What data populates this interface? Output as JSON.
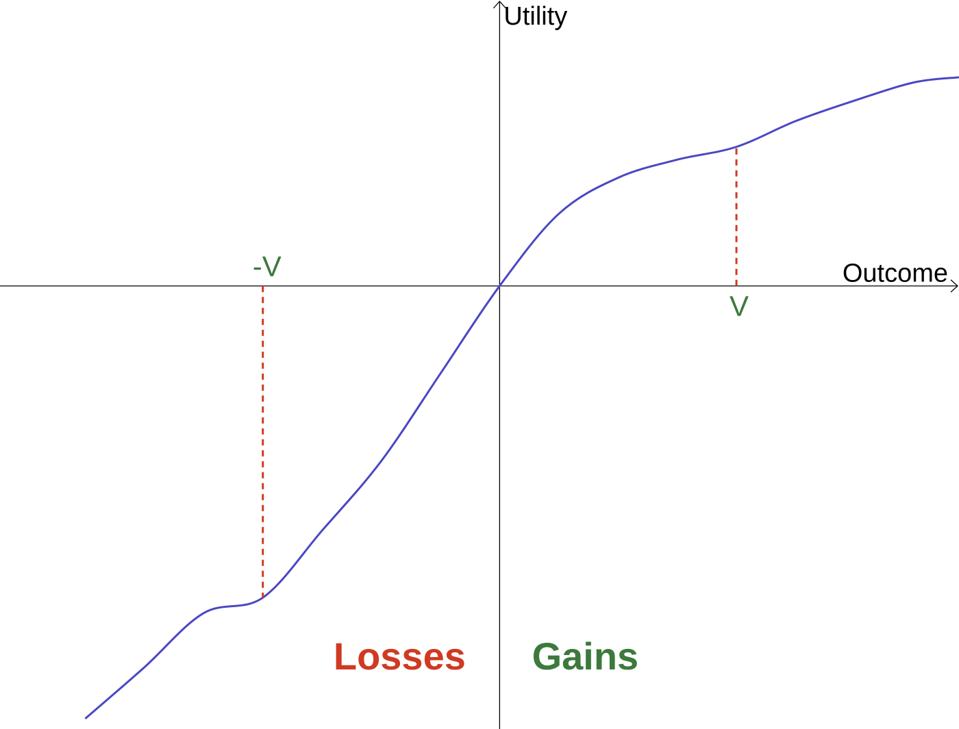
{
  "chart_data": {
    "type": "line",
    "title": "",
    "xlabel": "Outcome",
    "ylabel": "Utility",
    "xlim": [
      -2.11,
      1.94
    ],
    "ylim": [
      -1.72,
      1.11
    ],
    "grid": false,
    "legend": "none",
    "series": [
      {
        "x": [
          -1.75,
          -1.5,
          -1.25,
          -1.0,
          -0.75,
          -0.5,
          -0.25,
          0.0,
          0.25,
          0.5,
          0.75,
          1.0,
          1.25,
          1.5,
          1.75,
          1.94
        ],
        "values": [
          -1.68,
          -1.48,
          -1.27,
          -1.21,
          -0.95,
          -0.68,
          -0.34,
          0.0,
          0.28,
          0.42,
          0.49,
          0.54,
          0.64,
          0.72,
          0.79,
          0.81
        ]
      }
    ],
    "markers": [
      {
        "label": "-V",
        "x": -1.0,
        "y": -1.21,
        "color": "#d03a22",
        "text_color": "#3c7a3c"
      },
      {
        "label": "V",
        "x": 1.0,
        "y": 0.54,
        "color": "#d03a22",
        "text_color": "#3c7a3c"
      }
    ],
    "regions": [
      {
        "label": "Losses",
        "color": "#d03a22"
      },
      {
        "label": "Gains",
        "color": "#3c7a3c"
      }
    ]
  },
  "colors": {
    "curve": "#4a47c4",
    "axis": "#000000",
    "guide": "#d03a22",
    "marker_text": "#3c7a3c",
    "losses": "#d03a22",
    "gains": "#3c7a3c"
  }
}
